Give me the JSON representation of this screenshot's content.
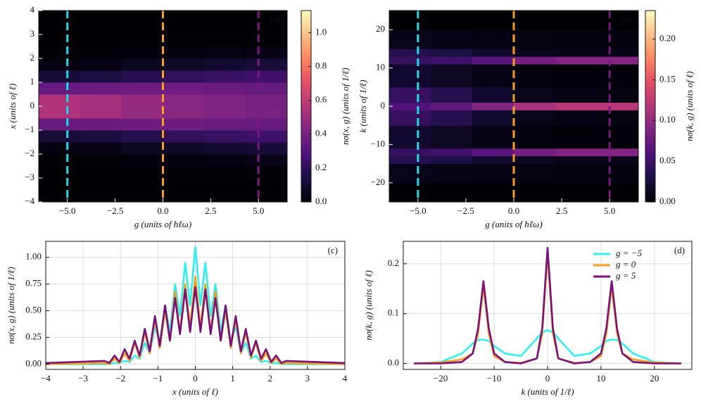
{
  "chart_data": [
    {
      "type": "heatmap",
      "panel_label": "(a)",
      "xlabel": "g (units of ħℓω)",
      "ylabel": "x (units of ℓ)",
      "zlabel": "nσ(x, g) (units of 1/ℓ)",
      "colormap": "magma",
      "xlim": [
        -6.5,
        6.5
      ],
      "ylim": [
        -4,
        4
      ],
      "xticks": [
        {
          "value": -5,
          "label": "−5.0"
        },
        {
          "value": -2.5,
          "label": "−2.5"
        },
        {
          "value": 0,
          "label": "0.0"
        },
        {
          "value": 2.5,
          "label": "2.5"
        },
        {
          "value": 5,
          "label": "5.0"
        }
      ],
      "yticks": [
        {
          "value": -4,
          "label": "−4"
        },
        {
          "value": -3,
          "label": "−3"
        },
        {
          "value": -2,
          "label": "−2"
        },
        {
          "value": -1,
          "label": "−1"
        },
        0,
        1,
        2,
        3,
        4
      ],
      "zlim": [
        0,
        1.13
      ],
      "zticks": [
        {
          "value": 0,
          "label": "0.0"
        },
        {
          "value": 0.2,
          "label": "0.2"
        },
        {
          "value": 0.4,
          "label": "0.4"
        },
        {
          "value": 0.6,
          "label": "0.6"
        },
        {
          "value": 0.8,
          "label": "0.8"
        },
        {
          "value": 1.0,
          "label": "1.0"
        }
      ],
      "x_edges": [
        -6.5,
        -4.33,
        -2.17,
        0,
        2.17,
        4.33,
        6.5
      ],
      "y_edges": [
        -4,
        -3.5,
        -3,
        -2.5,
        -2,
        -1.5,
        -1,
        -0.5,
        0,
        0.5,
        1,
        1.5,
        2,
        2.5,
        3,
        3.5,
        4
      ],
      "values": [
        [
          0,
          0,
          0,
          0,
          0,
          0
        ],
        [
          0,
          0,
          0,
          0,
          0,
          0
        ],
        [
          0,
          0,
          0,
          0.005,
          0.01,
          0.01
        ],
        [
          0.005,
          0.01,
          0.015,
          0.02,
          0.03,
          0.04
        ],
        [
          0.03,
          0.04,
          0.06,
          0.08,
          0.1,
          0.12
        ],
        [
          0.12,
          0.14,
          0.17,
          0.2,
          0.22,
          0.24
        ],
        [
          0.35,
          0.36,
          0.37,
          0.37,
          0.36,
          0.35
        ],
        [
          0.55,
          0.52,
          0.48,
          0.45,
          0.42,
          0.4
        ],
        [
          0.55,
          0.52,
          0.48,
          0.45,
          0.42,
          0.4
        ],
        [
          0.35,
          0.36,
          0.37,
          0.37,
          0.36,
          0.35
        ],
        [
          0.12,
          0.14,
          0.17,
          0.2,
          0.22,
          0.24
        ],
        [
          0.03,
          0.04,
          0.06,
          0.08,
          0.1,
          0.12
        ],
        [
          0.005,
          0.01,
          0.015,
          0.02,
          0.03,
          0.04
        ],
        [
          0,
          0,
          0,
          0.005,
          0.01,
          0.01
        ],
        [
          0,
          0,
          0,
          0,
          0,
          0
        ],
        [
          0,
          0,
          0,
          0,
          0,
          0
        ]
      ],
      "vlines": [
        {
          "x": -5,
          "color": "#22dbe6"
        },
        {
          "x": 0,
          "color": "#f5a020"
        },
        {
          "x": 5,
          "color": "#7d1880"
        }
      ]
    },
    {
      "type": "heatmap",
      "panel_label": "(b)",
      "xlabel": "g (units of ħℓω)",
      "ylabel": "k (units of 1/ℓ)",
      "zlabel": "nσ(k, g) (units of ℓ)",
      "colormap": "magma",
      "xlim": [
        -6.5,
        6.5
      ],
      "ylim": [
        -25,
        25
      ],
      "xticks": [
        {
          "value": -5,
          "label": "−5.0"
        },
        {
          "value": -2.5,
          "label": "−2.5"
        },
        {
          "value": 0,
          "label": "0.0"
        },
        {
          "value": 2.5,
          "label": "2.5"
        },
        {
          "value": 5,
          "label": "5.0"
        }
      ],
      "yticks": [
        {
          "value": -20,
          "label": "−20"
        },
        {
          "value": -10,
          "label": "−10"
        },
        0,
        10,
        20
      ],
      "zlim": [
        0,
        0.235
      ],
      "zticks": [
        {
          "value": 0,
          "label": "0.00"
        },
        {
          "value": 0.05,
          "label": "0.05"
        },
        {
          "value": 0.1,
          "label": "0.10"
        },
        {
          "value": 0.15,
          "label": "0.15"
        },
        {
          "value": 0.2,
          "label": "0.20"
        }
      ],
      "x_edges": [
        -6.5,
        -4.33,
        -2.17,
        0,
        2.17,
        4.33,
        6.5
      ],
      "y_edges": [
        -25,
        -20,
        -15,
        -13,
        -11,
        -5,
        -1,
        1,
        5,
        11,
        13,
        15,
        20,
        25
      ],
      "values": [
        [
          0,
          0,
          0,
          0,
          0,
          0
        ],
        [
          0.01,
          0.008,
          0.006,
          0.005,
          0.004,
          0.004
        ],
        [
          0.035,
          0.03,
          0.02,
          0.012,
          0.01,
          0.01
        ],
        [
          0.045,
          0.05,
          0.065,
          0.08,
          0.09,
          0.09
        ],
        [
          0.02,
          0.015,
          0.008,
          0.004,
          0.003,
          0.003
        ],
        [
          0.045,
          0.035,
          0.02,
          0.01,
          0.007,
          0.005
        ],
        [
          0.06,
          0.07,
          0.09,
          0.11,
          0.12,
          0.12
        ],
        [
          0.045,
          0.035,
          0.02,
          0.01,
          0.007,
          0.005
        ],
        [
          0.02,
          0.015,
          0.008,
          0.004,
          0.003,
          0.003
        ],
        [
          0.045,
          0.05,
          0.065,
          0.08,
          0.09,
          0.09
        ],
        [
          0.035,
          0.03,
          0.02,
          0.012,
          0.01,
          0.01
        ],
        [
          0.01,
          0.008,
          0.006,
          0.005,
          0.004,
          0.004
        ],
        [
          0,
          0,
          0,
          0,
          0,
          0
        ]
      ],
      "vlines": [
        {
          "x": -5,
          "color": "#22dbe6"
        },
        {
          "x": 0,
          "color": "#f5a020"
        },
        {
          "x": 5,
          "color": "#7d1880"
        }
      ]
    },
    {
      "type": "line",
      "panel_label": "(c)",
      "xlabel": "x (units of ℓ)",
      "ylabel": "nσ(x, g) (units of 1/ℓ)",
      "grid": true,
      "xlim": [
        -4,
        4
      ],
      "ylim": [
        -0.05,
        1.15
      ],
      "xticks": [
        {
          "value": -4,
          "label": "−4"
        },
        {
          "value": -3,
          "label": "−3"
        },
        {
          "value": -2,
          "label": "−2"
        },
        {
          "value": -1,
          "label": "−1"
        },
        0,
        1,
        2,
        3,
        4
      ],
      "yticks": [
        {
          "value": 0,
          "label": "0.00"
        },
        {
          "value": 0.25,
          "label": "0.25"
        },
        {
          "value": 0.5,
          "label": "0.50"
        },
        {
          "value": 0.75,
          "label": "0.75"
        },
        {
          "value": 1.0,
          "label": "1.00"
        }
      ],
      "x": [
        -4,
        -2.43,
        -2.3,
        -2.16,
        -2.03,
        -1.89,
        -1.76,
        -1.62,
        -1.49,
        -1.35,
        -1.22,
        -1.08,
        -0.95,
        -0.81,
        -0.68,
        -0.54,
        -0.41,
        -0.27,
        -0.14,
        0,
        0.14,
        0.27,
        0.41,
        0.54,
        0.68,
        0.81,
        0.95,
        1.08,
        1.22,
        1.35,
        1.49,
        1.62,
        1.76,
        1.89,
        2.03,
        2.16,
        2.3,
        2.43,
        4
      ],
      "series": [
        {
          "color": "#33eef0",
          "values": [
            0,
            0,
            0,
            0.01,
            0.01,
            0.03,
            0.02,
            0.08,
            0.05,
            0.2,
            0.1,
            0.35,
            0.2,
            0.55,
            0.3,
            0.75,
            0.45,
            0.95,
            0.55,
            1.1,
            0.55,
            0.95,
            0.45,
            0.75,
            0.3,
            0.55,
            0.2,
            0.35,
            0.1,
            0.2,
            0.05,
            0.08,
            0.02,
            0.03,
            0.01,
            0.01,
            0,
            0,
            0
          ]
        },
        {
          "color": "#f0a020",
          "values": [
            0,
            0.01,
            0,
            0.05,
            0.01,
            0.1,
            0.03,
            0.2,
            0.06,
            0.3,
            0.1,
            0.42,
            0.15,
            0.5,
            0.22,
            0.68,
            0.3,
            0.75,
            0.35,
            0.82,
            0.35,
            0.75,
            0.3,
            0.68,
            0.22,
            0.5,
            0.15,
            0.42,
            0.1,
            0.3,
            0.06,
            0.2,
            0.03,
            0.1,
            0.01,
            0.05,
            0,
            0.01,
            0
          ]
        },
        {
          "color": "#7a107a",
          "values": [
            0.01,
            0.03,
            0.01,
            0.08,
            0.02,
            0.14,
            0.05,
            0.22,
            0.08,
            0.33,
            0.12,
            0.45,
            0.17,
            0.55,
            0.22,
            0.62,
            0.28,
            0.7,
            0.3,
            0.72,
            0.3,
            0.7,
            0.28,
            0.62,
            0.22,
            0.55,
            0.17,
            0.45,
            0.12,
            0.33,
            0.08,
            0.22,
            0.05,
            0.14,
            0.02,
            0.08,
            0.01,
            0.03,
            0.01
          ]
        }
      ]
    },
    {
      "type": "line",
      "panel_label": "(d)",
      "xlabel": "k (units of 1/ℓ)",
      "ylabel": "nσ(k, g) (units of ℓ)",
      "grid": true,
      "legend": "upper right",
      "xlim": [
        -27,
        27
      ],
      "ylim": [
        -0.012,
        0.245
      ],
      "xticks": [
        {
          "value": -20,
          "label": "−20"
        },
        {
          "value": -10,
          "label": "−10"
        },
        0,
        10,
        20
      ],
      "yticks": [
        {
          "value": 0,
          "label": "0.0"
        },
        {
          "value": 0.1,
          "label": "0.1"
        },
        {
          "value": 0.2,
          "label": "0.2"
        }
      ],
      "x": [
        -25,
        -20,
        -16,
        -14,
        -13,
        -12,
        -11,
        -10,
        -8,
        -5,
        -2,
        -1,
        0,
        1,
        2,
        5,
        8,
        10,
        11,
        12,
        13,
        14,
        16,
        20,
        25
      ],
      "series": [
        {
          "name": "g = −5",
          "color": "#33eef0",
          "values": [
            0,
            0.003,
            0.02,
            0.04,
            0.047,
            0.048,
            0.045,
            0.035,
            0.02,
            0.015,
            0.05,
            0.062,
            0.067,
            0.062,
            0.05,
            0.015,
            0.02,
            0.035,
            0.045,
            0.048,
            0.047,
            0.04,
            0.02,
            0.003,
            0
          ]
        },
        {
          "name": "g = 0",
          "color": "#f0a020",
          "values": [
            0,
            0.002,
            0.008,
            0.02,
            0.06,
            0.155,
            0.06,
            0.015,
            0.003,
            0.001,
            0.01,
            0.06,
            0.22,
            0.06,
            0.01,
            0.001,
            0.003,
            0.015,
            0.06,
            0.155,
            0.06,
            0.02,
            0.008,
            0.002,
            0
          ]
        },
        {
          "name": "g = 5",
          "color": "#7a107a",
          "values": [
            0,
            0,
            0.003,
            0.02,
            0.07,
            0.165,
            0.07,
            0.02,
            0.003,
            0,
            0.01,
            0.07,
            0.232,
            0.07,
            0.01,
            0,
            0.003,
            0.02,
            0.07,
            0.165,
            0.07,
            0.02,
            0.003,
            0,
            0
          ]
        }
      ]
    }
  ]
}
